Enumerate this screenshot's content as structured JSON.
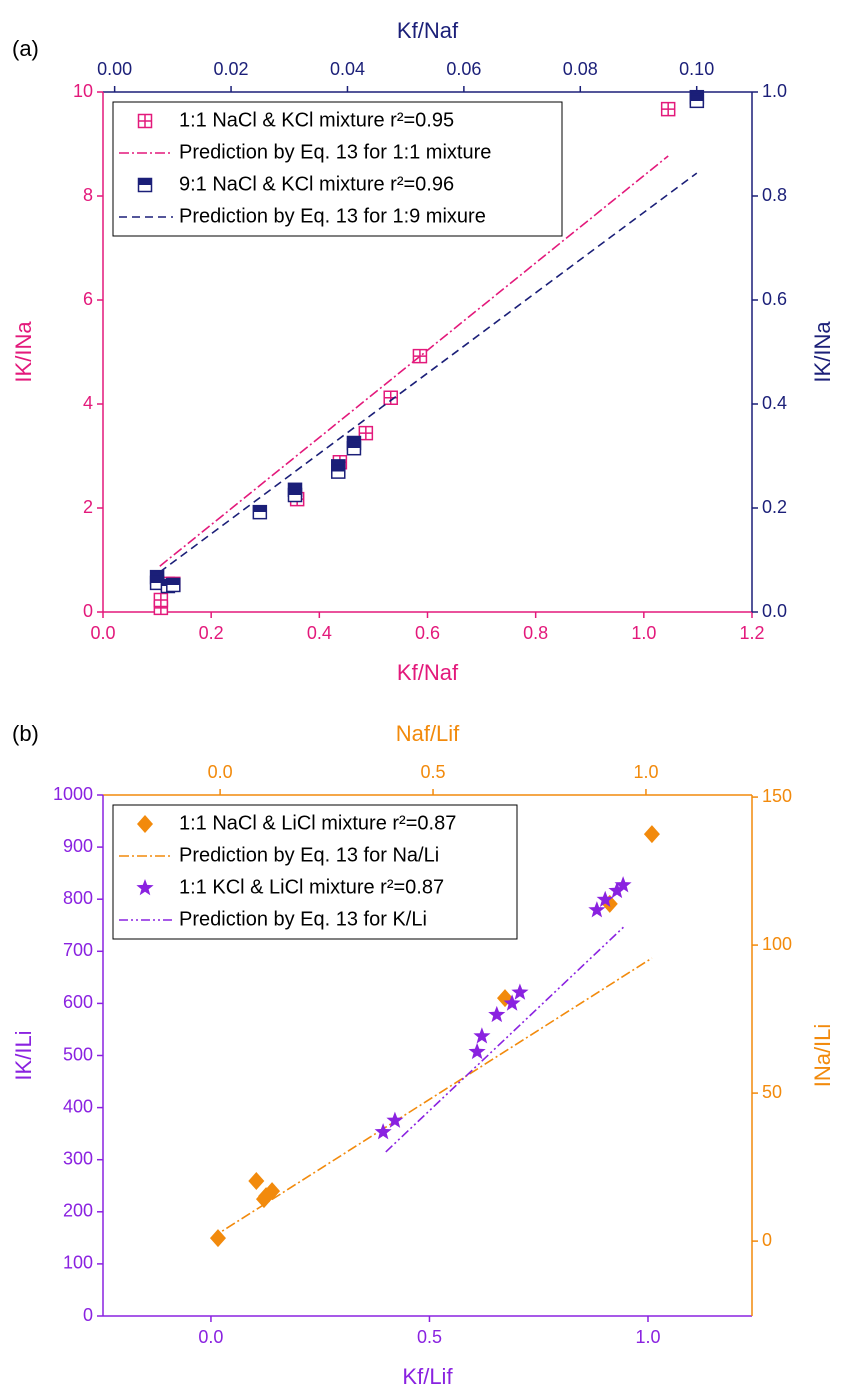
{
  "chart_data": [
    {
      "type": "scatter",
      "panel_label": "(a)",
      "x_label": "Kf/Naf",
      "x2_label": "Kf/Naf",
      "y_label": "IK/INa",
      "y2_label": "IK/INa",
      "x_color": "#e3197b",
      "y_color": "#e3197b",
      "x2_color": "#1b1f78",
      "y2_color": "#1b1f78",
      "xlim": [
        0,
        1.2
      ],
      "xticks": [
        {
          "value": 0,
          "label": "0.0"
        },
        0.2,
        0.4,
        0.6,
        0.8,
        {
          "value": 1,
          "label": "1.0"
        },
        1.2
      ],
      "x2lim": [
        -0.002,
        0.1095
      ],
      "x2ticks": [
        {
          "value": 0,
          "label": "0.00"
        },
        0.02,
        0.04,
        0.06,
        0.08,
        {
          "value": 0.1,
          "label": "0.10"
        }
      ],
      "ylim": [
        0,
        10
      ],
      "yticks": [
        0,
        2,
        4,
        6,
        8,
        10
      ],
      "y2lim": [
        0,
        1
      ],
      "y2ticks": [
        {
          "value": 0,
          "label": "0.0"
        },
        0.2,
        0.4,
        0.6,
        0.8,
        {
          "value": 1,
          "label": "1.0"
        }
      ],
      "legend": "top-left",
      "series": [
        {
          "name": "1:1 NaCl & KCl mixture r²=0.95",
          "color": "#e3197b",
          "marker": "square-cross",
          "x": [
            0.107,
            0.107,
            0.12,
            0.13,
            0.359,
            0.438,
            0.486,
            0.532,
            0.586,
            1.045
          ],
          "values": [
            0.08,
            0.23,
            0.54,
            0.54,
            2.17,
            2.88,
            3.44,
            4.12,
            4.92,
            9.67
          ]
        },
        {
          "name": "Prediction by Eq. 13 for 1:1 mixture",
          "color": "#e3197b",
          "mode": "line",
          "dash": "dash-dot",
          "x": [
            0.105,
            1.045
          ],
          "values": [
            0.88,
            8.77
          ]
        },
        {
          "name": "9:1 NaCl & KCl mixture r²=0.96",
          "color": "#1b1f78",
          "marker": "square-half",
          "axis": "y2",
          "x": [
            0.1,
            0.1,
            0.12,
            0.13,
            0.29,
            0.355,
            0.355,
            0.435,
            0.435,
            0.464,
            0.464,
            1.098,
            1.098
          ],
          "values": [
            0.067,
            0.056,
            0.05,
            0.052,
            0.192,
            0.235,
            0.225,
            0.28,
            0.27,
            0.325,
            0.315,
            0.99,
            0.983
          ]
        },
        {
          "name": "Prediction by Eq. 13 for 1:9 mixure",
          "color": "#1b1f78",
          "mode": "line",
          "dash": "dash",
          "axis": "y2",
          "x": [
            0.105,
            1.098
          ],
          "values": [
            0.077,
            0.844
          ]
        }
      ]
    },
    {
      "type": "scatter",
      "panel_label": "(b)",
      "x_label": "Kf/Lif",
      "x2_label": "Naf/Lif",
      "y_label": "IK/ILi",
      "y2_label": "INa/ILi",
      "x_color": "#8a22e0",
      "y_color": "#8a22e0",
      "x2_color": "#f28a0c",
      "y2_color": "#f28a0c",
      "xlim": [
        -0.247,
        1.238
      ],
      "xticks": [
        {
          "value": 0,
          "label": "0.0"
        },
        0.5,
        {
          "value": 1,
          "label": "1.0"
        }
      ],
      "x2lim": [
        -0.275,
        1.249
      ],
      "x2ticks": [
        {
          "value": 0,
          "label": "0.0"
        },
        0.5,
        {
          "value": 1,
          "label": "1.0"
        }
      ],
      "ylim": [
        0,
        1000
      ],
      "yticks": [
        0,
        100,
        200,
        300,
        400,
        500,
        600,
        700,
        800,
        900,
        1000
      ],
      "y2lim": [
        -25.3,
        150.7
      ],
      "y2ticks": [
        0,
        50,
        100,
        150
      ],
      "legend": "top-left",
      "series": [
        {
          "name": "1:1 NaCl & LiCl mixture r²=0.87",
          "color": "#f28a0c",
          "marker": "diamond",
          "axis": "y2",
          "xaxis": "x2",
          "x": [
            -0.005,
            0.085,
            0.103,
            0.108,
            0.122,
            0.669,
            0.915,
            1.014
          ],
          "values": [
            1.0,
            20.3,
            14.2,
            15.2,
            16.9,
            82.1,
            113.9,
            137.5
          ]
        },
        {
          "name": "Prediction by Eq. 13 for Na/Li",
          "color": "#f28a0c",
          "mode": "line",
          "dash": "dash-dot",
          "axis": "y2",
          "xaxis": "x2",
          "x": [
            -0.021,
            1.014
          ],
          "values": [
            1.0,
            95.6
          ]
        },
        {
          "name": "1:1 KCl & LiCl mixture r²=0.87",
          "color": "#8a22e0",
          "marker": "star",
          "x": [
            0.394,
            0.421,
            0.609,
            0.62,
            0.654,
            0.689,
            0.707,
            0.883,
            0.902,
            0.929,
            0.943
          ],
          "values": [
            353,
            375,
            507,
            537,
            578,
            600,
            621,
            779,
            799,
            816,
            827
          ]
        },
        {
          "name": "Prediction by Eq. 13 for K/Li",
          "color": "#8a22e0",
          "mode": "line",
          "dash": "dash-dot-dot",
          "x": [
            0.4,
            0.945
          ],
          "values": [
            315,
            747
          ]
        }
      ]
    }
  ]
}
